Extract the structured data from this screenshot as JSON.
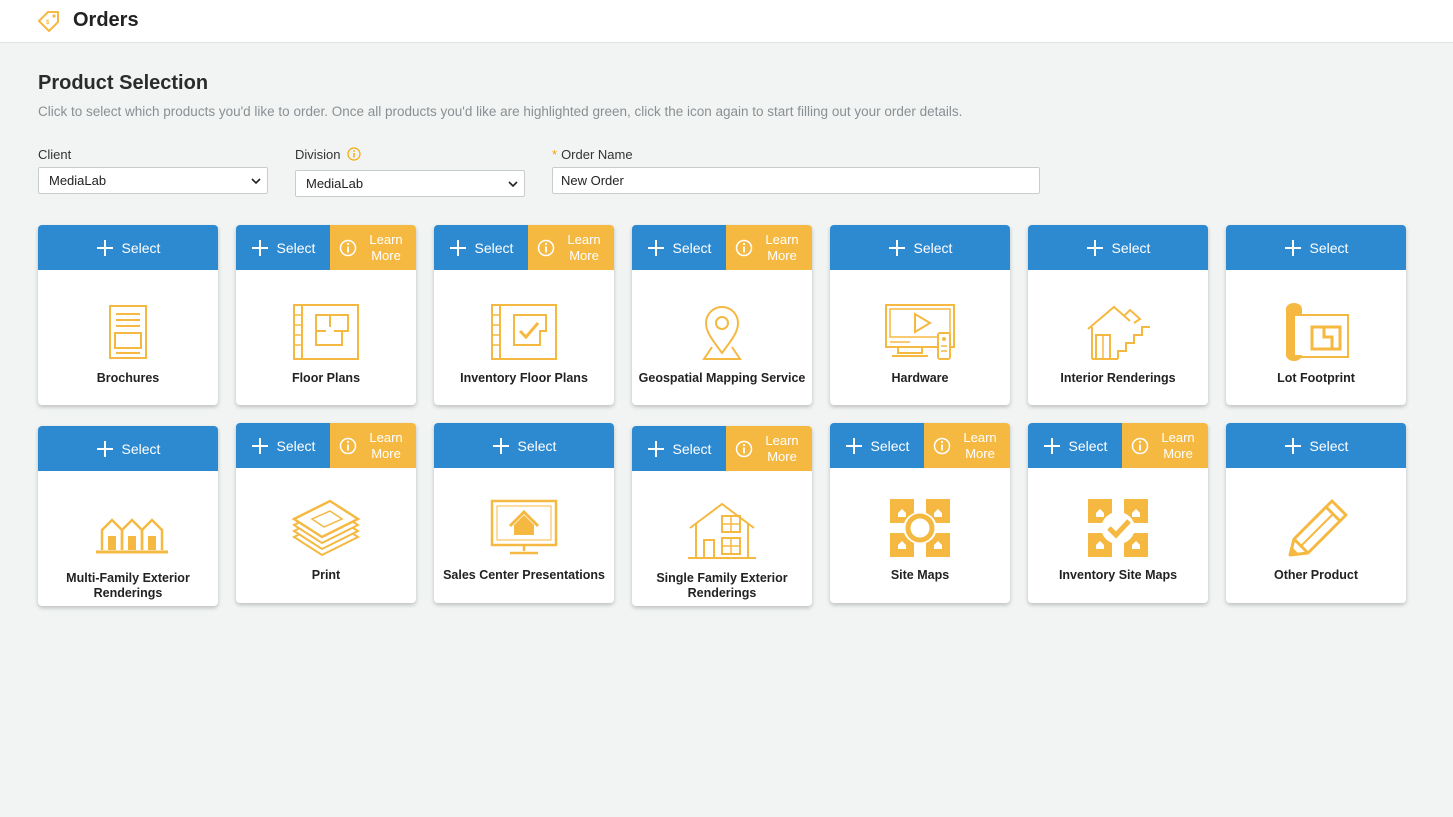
{
  "header": {
    "title": "Orders",
    "logo_icon": "price-tag-icon"
  },
  "page": {
    "heading": "Product Selection",
    "subtext": "Click to select which products you'd like to order. Once all products you'd like are highlighted green, click the icon again to start filling out your order details."
  },
  "form": {
    "client": {
      "label": "Client",
      "value": "MediaLab"
    },
    "division": {
      "label": "Division",
      "value": "MediaLab"
    },
    "order_name": {
      "required_mark": "*",
      "label": "Order Name",
      "value": "New Order"
    }
  },
  "buttons": {
    "select": "Select",
    "learn_line1": "Learn",
    "learn_line2": "More"
  },
  "colors": {
    "select_blue": "#2e8ad0",
    "learn_orange": "#f5b942",
    "icon_orange": "#f5b942"
  },
  "products": [
    {
      "name": "Brochures",
      "icon": "brochure-icon",
      "learn_more": false
    },
    {
      "name": "Floor Plans",
      "icon": "floor-plan-icon",
      "learn_more": true
    },
    {
      "name": "Inventory Floor Plans",
      "icon": "inventory-floor-plan-icon",
      "learn_more": true
    },
    {
      "name": "Geospatial Mapping Service",
      "icon": "map-pin-icon",
      "learn_more": true
    },
    {
      "name": "Hardware",
      "icon": "monitor-remote-icon",
      "learn_more": false
    },
    {
      "name": "Interior Renderings",
      "icon": "house-stairs-icon",
      "learn_more": false
    },
    {
      "name": "Lot Footprint",
      "icon": "blueprint-roll-icon",
      "learn_more": false
    },
    {
      "name": "Multi-Family Exterior Renderings",
      "icon": "townhouses-icon",
      "learn_more": false
    },
    {
      "name": "Print",
      "icon": "paper-stack-icon",
      "learn_more": true
    },
    {
      "name": "Sales Center Presentations",
      "icon": "monitor-house-icon",
      "learn_more": false
    },
    {
      "name": "Single Family Exterior Renderings",
      "icon": "house-exterior-icon",
      "learn_more": true
    },
    {
      "name": "Site Maps",
      "icon": "site-map-icon",
      "learn_more": true
    },
    {
      "name": "Inventory Site Maps",
      "icon": "inventory-site-map-icon",
      "learn_more": true
    },
    {
      "name": "Other Product",
      "icon": "pencil-icon",
      "learn_more": false
    }
  ]
}
